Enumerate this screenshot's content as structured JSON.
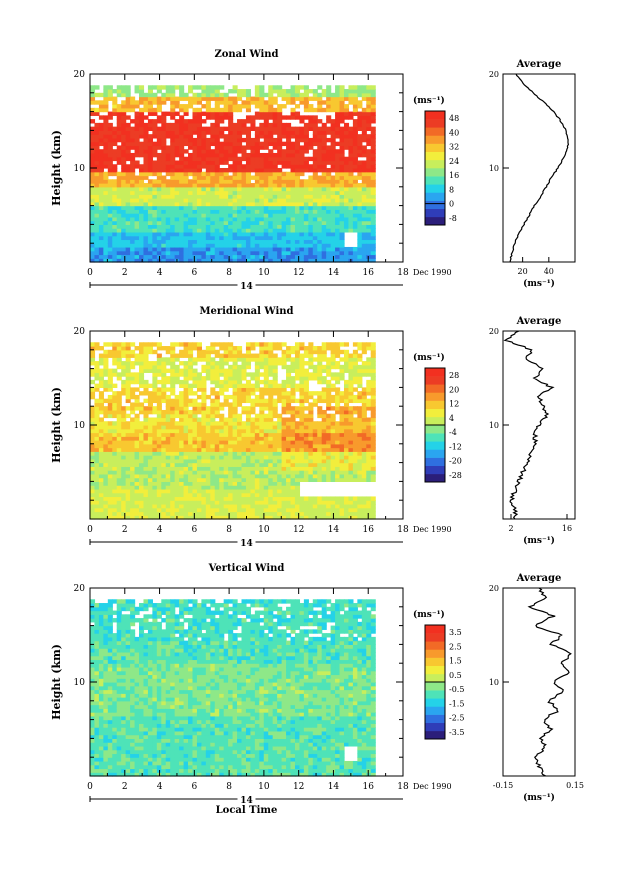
{
  "chart_data": [
    {
      "type": "heatmap",
      "title": "Zonal Wind",
      "xlabel": "",
      "ylabel": "Height (km)",
      "xlim": [
        0,
        18
      ],
      "ylim": [
        0,
        20
      ],
      "xticks": [
        "0",
        "2",
        "4",
        "6",
        "8",
        "10",
        "12",
        "14",
        "16",
        "18"
      ],
      "yticks": [
        "10",
        "20"
      ],
      "date_marker": "14",
      "date_label": "Dec 1990",
      "colorbar": {
        "unit": "(ms⁻¹)",
        "ticks": [
          "-8",
          "0",
          "8",
          "16",
          "24",
          "32",
          "40",
          "48"
        ],
        "range": [
          -12,
          52
        ]
      },
      "profile": {
        "title": "Average",
        "xticks": [
          "20",
          "40"
        ],
        "xlim": [
          5,
          60
        ],
        "xlabel": "(ms⁻¹)",
        "yticks": [
          "10",
          "20"
        ],
        "points": [
          [
            10,
            0
          ],
          [
            12,
            1
          ],
          [
            14,
            2
          ],
          [
            17,
            3
          ],
          [
            21,
            4
          ],
          [
            25,
            5
          ],
          [
            29,
            6
          ],
          [
            34,
            7
          ],
          [
            38,
            8
          ],
          [
            42,
            9
          ],
          [
            47,
            10
          ],
          [
            51,
            11
          ],
          [
            54,
            12
          ],
          [
            55,
            13
          ],
          [
            53,
            14
          ],
          [
            49,
            15
          ],
          [
            44,
            16
          ],
          [
            36,
            17
          ],
          [
            28,
            18
          ],
          [
            20,
            19
          ],
          [
            15,
            20
          ]
        ]
      }
    },
    {
      "type": "heatmap",
      "title": "Meridional Wind",
      "xlabel": "",
      "ylabel": "Height (km)",
      "xlim": [
        0,
        18
      ],
      "ylim": [
        0,
        20
      ],
      "xticks": [
        "0",
        "2",
        "4",
        "6",
        "8",
        "10",
        "12",
        "14",
        "16",
        "18"
      ],
      "yticks": [
        "10",
        "20"
      ],
      "date_marker": "14",
      "date_label": "Dec 1990",
      "colorbar": {
        "unit": "(ms⁻¹)",
        "ticks": [
          "-28",
          "-20",
          "-12",
          "-4",
          "4",
          "12",
          "20",
          "28"
        ],
        "range": [
          -32,
          32
        ]
      },
      "profile": {
        "title": "Average",
        "xticks": [
          "2",
          "16"
        ],
        "xlim": [
          0,
          18
        ],
        "xlabel": "(ms⁻¹)",
        "yticks": [
          "10",
          "20"
        ],
        "points": [
          [
            3,
            0
          ],
          [
            3,
            1
          ],
          [
            2,
            2
          ],
          [
            3,
            3
          ],
          [
            4,
            4
          ],
          [
            5,
            5
          ],
          [
            6,
            6
          ],
          [
            7,
            7
          ],
          [
            8,
            8
          ],
          [
            8,
            9
          ],
          [
            9,
            10
          ],
          [
            11,
            11
          ],
          [
            10,
            12
          ],
          [
            9,
            13
          ],
          [
            12,
            14
          ],
          [
            8,
            15
          ],
          [
            10,
            16
          ],
          [
            6,
            17
          ],
          [
            7,
            18
          ],
          [
            1,
            19
          ],
          [
            4,
            20
          ]
        ]
      }
    },
    {
      "type": "heatmap",
      "title": "Vertical Wind",
      "xlabel": "Local Time",
      "ylabel": "Height (km)",
      "xlim": [
        0,
        18
      ],
      "ylim": [
        0,
        20
      ],
      "xticks": [
        "0",
        "2",
        "4",
        "6",
        "8",
        "10",
        "12",
        "14",
        "16",
        "18"
      ],
      "yticks": [
        "10",
        "20"
      ],
      "date_marker": "14",
      "date_label": "Dec 1990",
      "colorbar": {
        "unit": "(ms⁻¹)",
        "ticks": [
          "-3.5",
          "-2.5",
          "-1.5",
          "-0.5",
          "0.5",
          "1.5",
          "2.5",
          "3.5"
        ],
        "range": [
          -4,
          4
        ]
      },
      "profile": {
        "title": "Average",
        "xticks": [
          "-0.15",
          "0.15"
        ],
        "xlim": [
          -0.15,
          0.15
        ],
        "xlabel": "(ms⁻¹)",
        "yticks": [
          "10",
          "20"
        ],
        "points": [
          [
            0.02,
            0
          ],
          [
            0.0,
            1
          ],
          [
            -0.02,
            2
          ],
          [
            0.03,
            3
          ],
          [
            0.01,
            4
          ],
          [
            0.05,
            5
          ],
          [
            0.02,
            6
          ],
          [
            0.08,
            7
          ],
          [
            0.04,
            8
          ],
          [
            0.1,
            9
          ],
          [
            0.06,
            10
          ],
          [
            0.12,
            11
          ],
          [
            0.09,
            12
          ],
          [
            0.14,
            13
          ],
          [
            0.05,
            14
          ],
          [
            0.1,
            15
          ],
          [
            -0.02,
            16
          ],
          [
            0.06,
            17
          ],
          [
            -0.04,
            18
          ],
          [
            0.03,
            19
          ],
          [
            0.0,
            20
          ]
        ]
      }
    }
  ]
}
